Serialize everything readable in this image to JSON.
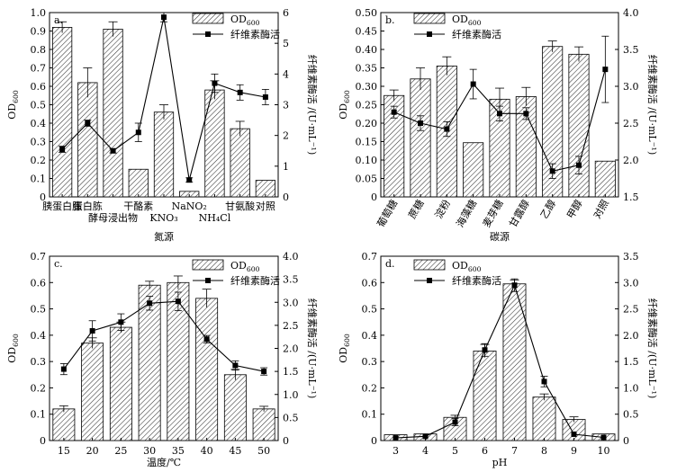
{
  "chart_data": [
    {
      "panel": "a.",
      "type": "bar",
      "xlabel": "氮源",
      "ylabel": "OD600",
      "y2label": "纤维素酶活 /(U·mL⁻¹)",
      "ylim": [
        0,
        1.0
      ],
      "y2lim": [
        0,
        6
      ],
      "yticks": [
        "0",
        "0.1",
        "0.2",
        "0.3",
        "0.4",
        "0.5",
        "0.6",
        "0.7",
        "0.8",
        "0.9",
        "1.0"
      ],
      "y2ticks": [
        "0",
        "1",
        "2",
        "3",
        "4",
        "5",
        "6"
      ],
      "categories": [
        "胰蛋白胨",
        "蛋白胨",
        "酵母浸出物",
        "干酪素",
        "KNO₃",
        "NaNO₂",
        "NH₄Cl",
        "甘氨酸",
        "对照"
      ],
      "label_rows": [
        0,
        0,
        1,
        0,
        1,
        0,
        1,
        0,
        0
      ],
      "bars": [
        0.92,
        0.62,
        0.91,
        0.15,
        0.46,
        0.03,
        0.58,
        0.37,
        0.09
      ],
      "bar_err": [
        0.03,
        0.08,
        0.04,
        0.0,
        0.04,
        0.0,
        0.05,
        0.04,
        0.0
      ],
      "line": [
        1.55,
        2.4,
        1.5,
        2.1,
        5.85,
        0.55,
        3.7,
        3.4,
        3.25
      ],
      "line_err": [
        0.1,
        0.1,
        0.07,
        0.3,
        0.15,
        0.07,
        0.3,
        0.25,
        0.25
      ],
      "legend": {
        "bar": "OD600",
        "line": "纤维素酶活"
      }
    },
    {
      "panel": "b.",
      "type": "bar",
      "xlabel": "碳源",
      "ylabel": "OD600",
      "y2label": "纤维素酶活 /(U·mL⁻¹)",
      "ylim": [
        0,
        0.5
      ],
      "y2lim": [
        1.5,
        4.0
      ],
      "yticks": [
        "0",
        "0.05",
        "0.10",
        "0.15",
        "0.20",
        "0.25",
        "0.30",
        "0.35",
        "0.40",
        "0.45",
        "0.50"
      ],
      "y2ticks": [
        "1.5",
        "2.0",
        "2.5",
        "3.0",
        "3.5",
        "4.0"
      ],
      "categories": [
        "葡萄糖",
        "蔗糖",
        "淀粉",
        "海藻糖",
        "麦芽糖",
        "甘露醇",
        "乙醇",
        "甲醇",
        "对照"
      ],
      "bars": [
        0.275,
        0.32,
        0.355,
        0.147,
        0.265,
        0.272,
        0.408,
        0.387,
        0.097
      ],
      "bar_err": [
        0.015,
        0.03,
        0.025,
        0.0,
        0.03,
        0.025,
        0.015,
        0.02,
        0.0
      ],
      "line": [
        2.65,
        2.5,
        2.42,
        3.03,
        2.63,
        2.63,
        1.85,
        1.93,
        3.23
      ],
      "line_err": [
        0.08,
        0.1,
        0.1,
        0.2,
        0.1,
        0.08,
        0.1,
        0.12,
        0.45
      ],
      "legend": {
        "bar": "OD600",
        "line": "纤维素酶活"
      }
    },
    {
      "panel": "c.",
      "type": "bar",
      "xlabel": "温度/℃",
      "ylabel": "OD600",
      "y2label": "纤维素酶活 /(U·mL⁻¹)",
      "ylim": [
        0,
        0.7
      ],
      "y2lim": [
        0,
        4.0
      ],
      "yticks": [
        "0",
        "0.1",
        "0.2",
        "0.3",
        "0.4",
        "0.5",
        "0.6",
        "0.7"
      ],
      "y2ticks": [
        "0",
        "0.5",
        "1.0",
        "1.5",
        "2.0",
        "2.5",
        "3.0",
        "3.5",
        "4.0"
      ],
      "categories": [
        "15",
        "20",
        "25",
        "30",
        "35",
        "40",
        "45",
        "50"
      ],
      "bars": [
        0.12,
        0.37,
        0.43,
        0.59,
        0.6,
        0.54,
        0.25,
        0.12
      ],
      "bar_err": [
        0.012,
        0.02,
        0.02,
        0.015,
        0.025,
        0.035,
        0.02,
        0.01
      ],
      "line": [
        1.55,
        2.38,
        2.57,
        2.98,
        3.02,
        2.2,
        1.63,
        1.5
      ],
      "line_err": [
        0.12,
        0.22,
        0.18,
        0.15,
        0.2,
        0.08,
        0.1,
        0.08
      ],
      "legend": {
        "bar": "OD600",
        "line": "纤维素酶活"
      }
    },
    {
      "panel": "d.",
      "type": "bar",
      "xlabel": "pH",
      "ylabel": "OD600",
      "y2label": "纤维素酶活 /(U·mL⁻¹)",
      "ylim": [
        0,
        0.7
      ],
      "y2lim": [
        0,
        3.5
      ],
      "yticks": [
        "0",
        "0.1",
        "0.2",
        "0.3",
        "0.4",
        "0.5",
        "0.6",
        "0.7"
      ],
      "y2ticks": [
        "0",
        "0.5",
        "1.0",
        "1.5",
        "2.0",
        "2.5",
        "3.0",
        "3.5"
      ],
      "categories": [
        "3",
        "4",
        "5",
        "6",
        "7",
        "8",
        "9",
        "10"
      ],
      "bars": [
        0.022,
        0.025,
        0.088,
        0.34,
        0.595,
        0.165,
        0.08,
        0.025
      ],
      "bar_err": [
        0.0,
        0.0,
        0.008,
        0.025,
        0.015,
        0.012,
        0.01,
        0.0
      ],
      "line": [
        0.05,
        0.08,
        0.35,
        1.72,
        2.95,
        1.12,
        0.12,
        0.06
      ],
      "line_err": [
        0.0,
        0.0,
        0.07,
        0.12,
        0.12,
        0.1,
        0.0,
        0.0
      ],
      "legend": {
        "bar": "OD600",
        "line": "纤维素酶活"
      }
    }
  ]
}
